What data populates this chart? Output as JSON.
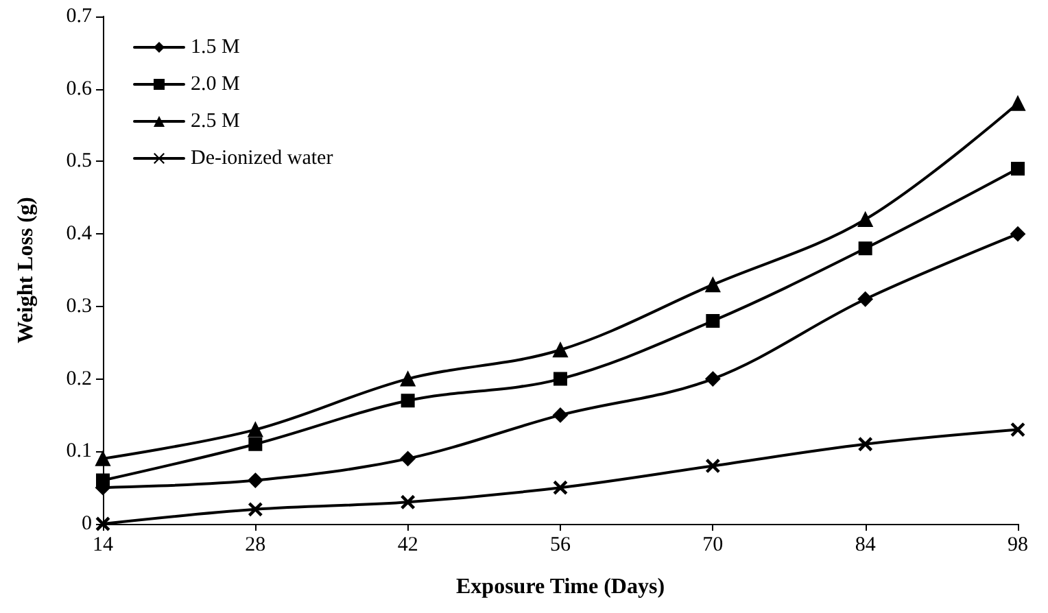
{
  "chart_data": {
    "type": "line",
    "xlabel": "Exposure Time (Days)",
    "ylabel": "Weight Loss (g)",
    "categories": [
      "14",
      "28",
      "42",
      "56",
      "70",
      "84",
      "98"
    ],
    "series": [
      {
        "name": "1.5 M",
        "color": "#000000",
        "marker": "diamond",
        "values": [
          0.05,
          0.06,
          0.09,
          0.15,
          0.2,
          0.31,
          0.4
        ]
      },
      {
        "name": "2.0 M",
        "color": "#000000",
        "marker": "square",
        "values": [
          0.06,
          0.11,
          0.17,
          0.2,
          0.28,
          0.38,
          0.49
        ]
      },
      {
        "name": "2.5 M",
        "color": "#000000",
        "marker": "triangle",
        "values": [
          0.09,
          0.13,
          0.2,
          0.24,
          0.33,
          0.42,
          0.58
        ]
      },
      {
        "name": "De-ionized water",
        "color": "#000000",
        "marker": "cross",
        "values": [
          0,
          0.02,
          0.03,
          0.05,
          0.08,
          0.11,
          0.13
        ]
      }
    ],
    "ylim": [
      0,
      0.7
    ],
    "yticks": [
      0,
      0.1,
      0.2,
      0.3,
      0.4,
      0.5,
      0.6,
      0.7
    ],
    "grid": false,
    "legend": "top left",
    "line_style": "solid"
  }
}
